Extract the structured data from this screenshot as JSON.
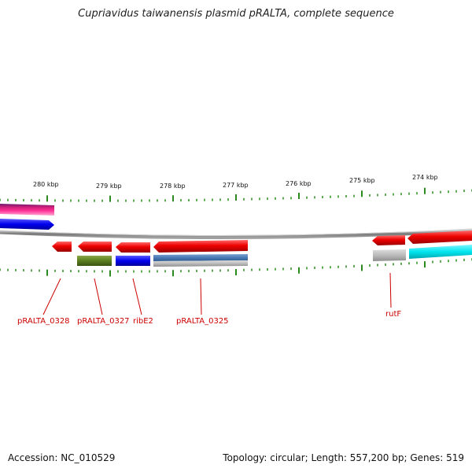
{
  "title": "Cupriavidus taiwanensis plasmid pRALTA, complete sequence",
  "footer": {
    "accession": "Accession: NC_010529",
    "summary": "Topology: circular; Length: 557,200 bp; Genes: 519"
  },
  "scale": {
    "labels": [
      "280 kbp",
      "279 kbp",
      "278 kbp",
      "277 kbp",
      "276 kbp",
      "275 kbp",
      "274 kbp"
    ],
    "tick_color": "#2a8a1e",
    "backbone_color": "#888888"
  },
  "gene_labels": [
    "pRALTA_0328",
    "pRALTA_0327",
    "ribE2",
    "pRALTA_0325",
    "rutF"
  ],
  "colors": {
    "gene_label": "#cc0000",
    "cds": "#ee0000",
    "cog_blue": "#0000ee",
    "cog_olive": "#5a7d1e",
    "cog_steelblue": "#4a7ab5",
    "cog_grey": "#bbbbbb",
    "cog_cyan": "#00e5ee",
    "cog_magenta": "#ee2288",
    "cog_purple": "#6a1a6a"
  }
}
